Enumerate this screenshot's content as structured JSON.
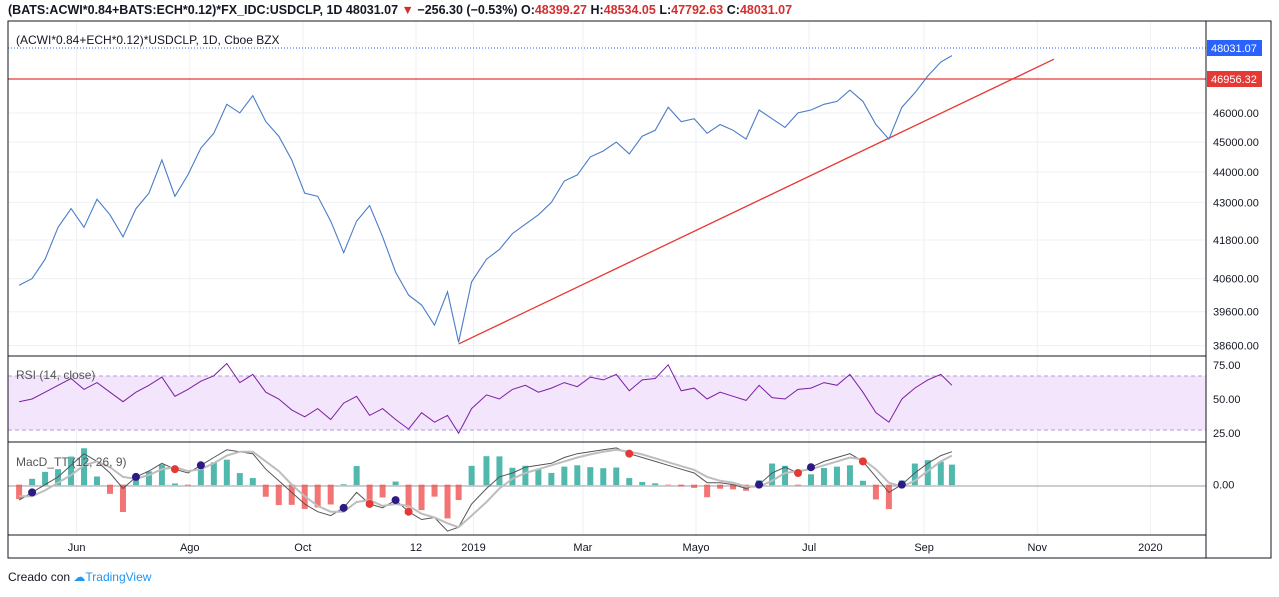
{
  "header": {
    "symbol": "(BATS:ACWI*0.84+BATS:ECH*0.12)*FX_IDC:USDCLP, 1D",
    "last": "48031.07",
    "change": "−256.30 (−0.53%)",
    "open_label": "O:",
    "open": "48399.27",
    "high_label": "H:",
    "high": "48534.05",
    "low_label": "L:",
    "low": "47792.63",
    "close_label": "C:",
    "close": "48031.07"
  },
  "footer": {
    "prefix": "Creado con",
    "brand": "TradingView"
  },
  "colors": {
    "price_line": "#4a7cc7",
    "trend_line": "#e53935",
    "rsi_line": "#7b1fa2",
    "rsi_band": "#f3e5fb",
    "macd_pos": "#26a69a",
    "macd_neg": "#ef5350",
    "badge_blue": "#2962ff",
    "badge_red": "#e53935"
  },
  "chart_data": [
    {
      "type": "line",
      "legend": "(ACWI*0.84+ECH*0.12)*USDCLP, 1D, Cboe BZX",
      "x_tick_labels": [
        "Jun",
        "Ago",
        "Oct",
        "12",
        "2019",
        "Mar",
        "Mayo",
        "Jul",
        "Sep",
        "Nov",
        "2020"
      ],
      "y_tick_labels": [
        "46000.00",
        "45000.00",
        "44000.00",
        "43000.00",
        "41800.00",
        "40600.00",
        "39600.00",
        "38600.00"
      ],
      "ylim": [
        38300,
        49300
      ],
      "log_scale": true,
      "price_badges": [
        {
          "label": "48031.07",
          "color": "#2962ff"
        },
        {
          "label": "46956.32",
          "color": "#e53935"
        }
      ],
      "horizontal_line": 46956.32,
      "trend_line": {
        "from": {
          "x": "2018-12-24",
          "y": 38650
        },
        "to": {
          "x": "2019-11-10",
          "y": 47900
        }
      },
      "series": [
        {
          "x": [
            "2018-05-01",
            "2018-05-08",
            "2018-05-15",
            "2018-05-22",
            "2018-05-29",
            "2018-06-05",
            "2018-06-12",
            "2018-06-19",
            "2018-06-26",
            "2018-07-03",
            "2018-07-10",
            "2018-07-17",
            "2018-07-24",
            "2018-07-31",
            "2018-08-07",
            "2018-08-14",
            "2018-08-21",
            "2018-08-28",
            "2018-09-04",
            "2018-09-11",
            "2018-09-18",
            "2018-09-25",
            "2018-10-02",
            "2018-10-09",
            "2018-10-16",
            "2018-10-23",
            "2018-10-30",
            "2018-11-06",
            "2018-11-13",
            "2018-11-20",
            "2018-11-27",
            "2018-12-04",
            "2018-12-11",
            "2018-12-18",
            "2018-12-24",
            "2018-12-31",
            "2019-01-08",
            "2019-01-15",
            "2019-01-22",
            "2019-01-29",
            "2019-02-05",
            "2019-02-12",
            "2019-02-19",
            "2019-02-26",
            "2019-03-05",
            "2019-03-12",
            "2019-03-19",
            "2019-03-26",
            "2019-04-02",
            "2019-04-09",
            "2019-04-16",
            "2019-04-23",
            "2019-04-30",
            "2019-05-07",
            "2019-05-14",
            "2019-05-21",
            "2019-05-28",
            "2019-06-04",
            "2019-06-11",
            "2019-06-18",
            "2019-06-25",
            "2019-07-02",
            "2019-07-09",
            "2019-07-16",
            "2019-07-23",
            "2019-07-30",
            "2019-08-06",
            "2019-08-13",
            "2019-08-20",
            "2019-08-27",
            "2019-09-03",
            "2019-09-10",
            "2019-09-16"
          ],
          "values": [
            40400,
            40600,
            41200,
            42200,
            42800,
            42200,
            43100,
            42600,
            41900,
            42800,
            43300,
            44400,
            43200,
            43900,
            44800,
            45300,
            46300,
            46000,
            46600,
            45700,
            45200,
            44400,
            43300,
            43200,
            42400,
            41400,
            42400,
            42900,
            41900,
            40800,
            40100,
            39800,
            39200,
            40200,
            38700,
            40500,
            41200,
            41500,
            42000,
            42300,
            42600,
            43000,
            43700,
            43900,
            44500,
            44700,
            45000,
            44600,
            45200,
            45400,
            46200,
            45700,
            45800,
            45300,
            45600,
            45400,
            45100,
            46100,
            45800,
            45500,
            46000,
            46100,
            46300,
            46400,
            46800,
            46400,
            45600,
            45100,
            46200,
            46700,
            47300,
            47800,
            48031
          ]
        }
      ]
    },
    {
      "type": "line",
      "legend": "RSI (14, close)",
      "y_tick_labels": [
        "75.00",
        "50.00",
        "25.00"
      ],
      "ylim": [
        20,
        80
      ],
      "bands": [
        30,
        70
      ],
      "series": [
        {
          "values": [
            48,
            50,
            55,
            60,
            65,
            57,
            62,
            55,
            48,
            55,
            60,
            66,
            52,
            57,
            63,
            67,
            76,
            62,
            68,
            55,
            50,
            42,
            37,
            43,
            35,
            47,
            52,
            38,
            43,
            35,
            28,
            40,
            33,
            38,
            25,
            43,
            53,
            50,
            57,
            60,
            55,
            58,
            62,
            59,
            66,
            64,
            68,
            56,
            64,
            65,
            75,
            56,
            58,
            50,
            55,
            52,
            49,
            60,
            51,
            50,
            57,
            58,
            62,
            60,
            68,
            55,
            40,
            33,
            50,
            58,
            64,
            68,
            60
          ]
        }
      ]
    },
    {
      "type": "line",
      "legend": "MacD_TT (12, 26, 9)",
      "y_tick_labels": [
        "0.00"
      ],
      "ylim": [
        -1.25,
        1.05
      ],
      "series": [
        {
          "values": [
            -0.4,
            -0.2,
            0,
            0.2,
            0.5,
            0.8,
            0.6,
            0.3,
            -0.1,
            0.2,
            0.35,
            0.55,
            0.4,
            0.3,
            0.5,
            0.7,
            0.9,
            0.85,
            0.8,
            0.4,
            0.1,
            -0.2,
            -0.5,
            -0.7,
            -0.8,
            -0.6,
            -0.2,
            -0.5,
            -0.6,
            -0.4,
            -0.7,
            -0.9,
            -0.85,
            -1.2,
            -1.1,
            -0.5,
            -0.1,
            0.2,
            0.3,
            0.45,
            0.5,
            0.55,
            0.7,
            0.8,
            0.85,
            0.9,
            0.95,
            0.8,
            0.7,
            0.6,
            0.5,
            0.4,
            0.3,
            0.05,
            0.05,
            0,
            -0.1,
            0,
            0.3,
            0.45,
            0.3,
            0.45,
            0.6,
            0.7,
            0.8,
            0.6,
            0.2,
            -0.2,
            0,
            0.3,
            0.55,
            0.75,
            0.85
          ]
        },
        {
          "values": [
            -0.3,
            -0.3,
            -0.15,
            0.05,
            0.25,
            0.5,
            0.6,
            0.45,
            0.2,
            0.15,
            0.25,
            0.4,
            0.45,
            0.35,
            0.4,
            0.55,
            0.75,
            0.85,
            0.85,
            0.6,
            0.35,
            0,
            -0.3,
            -0.55,
            -0.7,
            -0.7,
            -0.45,
            -0.4,
            -0.55,
            -0.5,
            -0.55,
            -0.75,
            -0.85,
            -1,
            -1.1,
            -0.8,
            -0.45,
            -0.1,
            0.15,
            0.3,
            0.4,
            0.5,
            0.6,
            0.7,
            0.78,
            0.85,
            0.9,
            0.85,
            0.78,
            0.68,
            0.58,
            0.48,
            0.38,
            0.2,
            0.1,
            0.05,
            -0.05,
            -0.05,
            0.1,
            0.3,
            0.35,
            0.4,
            0.5,
            0.6,
            0.7,
            0.65,
            0.4,
            0.05,
            -0.05,
            0.1,
            0.35,
            0.6,
            0.75
          ]
        }
      ]
    }
  ]
}
